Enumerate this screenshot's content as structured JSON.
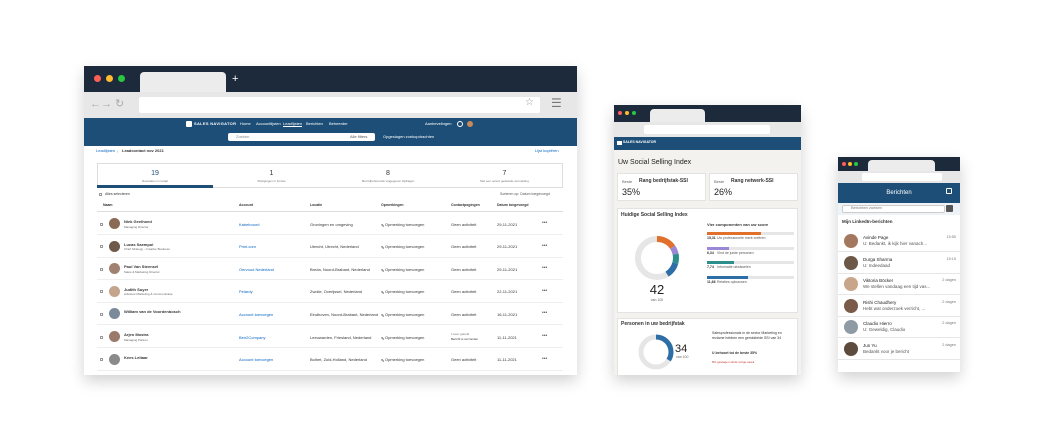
{
  "desktop": {
    "nav": {
      "logo": "SALES NAVIGATOR",
      "links": [
        "Home",
        "Accountlijsten",
        "Leadlijsten",
        "Berichten",
        "Beheerder"
      ],
      "search": "Zoeken",
      "filters": "Alle filters",
      "saved": "Opgeslagen zoekopdrachten",
      "recommendations": "Aanbevelingen"
    },
    "breadcrumb": {
      "parent": "Leadlijsten",
      "current": "Leadcontact nov 2021",
      "action": "Lijst kopiëren"
    },
    "stats": [
      {
        "value": "19",
        "label": "Resultaten in totaal"
      },
      {
        "value": "1",
        "label": "Wijzigingen in functie"
      },
      {
        "value": "8",
        "label": "Met bijbehorende vrijgegeven bijdragen"
      },
      {
        "value": "7",
        "label": "Met een recent gedeelde vermelding"
      }
    ],
    "toolbar": {
      "select_all": "Alles selecteren",
      "sort": "Sorteren op: Datum toegevoegd"
    },
    "table": {
      "headers": [
        "Naam",
        "Account",
        "Locatie",
        "Opmerkingen",
        "Contactpogingen",
        "Datum toegevoegd"
      ],
      "rows": [
        {
          "name": "Niek Geelhoed",
          "title": "Managing Director",
          "account": "Kabelnoord",
          "location": "Groningen en omgeving",
          "note": "Opmerking toevoegen",
          "contact": "Geen activiteit",
          "date": "29-11-2021"
        },
        {
          "name": "Lucas Saempol",
          "title": "Chief Strategy - Creative Business",
          "account": "Print.com",
          "location": "Utrecht, Utrecht, Nederland",
          "note": "Opmerking toevoegen",
          "contact": "Geen activiteit",
          "date": "29-11-2021"
        },
        {
          "name": "Paul Van Steensel",
          "title": "Sales & Marketing Director",
          "account": "Oervoud Nederland",
          "location": "Breda, Noord-Brabant, Nederland",
          "note": "Opmerking toevoegen",
          "contact": "Geen activiteit",
          "date": "29-11-2021"
        },
        {
          "name": "Judith Suyer",
          "title": "Adviseur Marketing & Communicatie",
          "account": "Pelardy",
          "location": "Zwolle, Overijssel, Nederland",
          "note": "Opmerking toevoegen",
          "contact": "Geen activiteit",
          "date": "22-11-2021"
        },
        {
          "name": "William van de Voordenbosch",
          "title": "",
          "account": "Account toevoegen",
          "location": "Eindhoven, Noord-Brabant, Nederland",
          "note": "Opmerking toevoegen",
          "contact": "Geen activiteit",
          "date": "16-11-2021"
        },
        {
          "name": "Arjen Mostra",
          "title": "Managing Partner",
          "account": "Ben2Company",
          "location": "Leeuwarden, Friesland, Nederland",
          "note": "Opmerking toevoegen",
          "contact": "1 keer gebeld",
          "contact_detail": "Bericht is verzonden",
          "date": "11-11-2021"
        },
        {
          "name": "Kees Leitaar",
          "title": "",
          "account": "Account toevoegen",
          "location": "Bolhet, Zuid-Holland, Nederland",
          "note": "Opmerking toevoegen",
          "contact": "Geen activiteit",
          "date": "11-11-2021"
        }
      ]
    }
  },
  "tablet": {
    "nav": "SALES NAVIGATOR",
    "title": "Uw Social Selling Index",
    "ranks": [
      {
        "prefix": "Beste",
        "value": "35%",
        "label": "Rang bedrijfstak-SSI"
      },
      {
        "prefix": "Beste",
        "value": "26%",
        "label": "Rang netwerk-SSI"
      }
    ],
    "current": {
      "heading": "Huidige Social Selling Index",
      "score": 42,
      "out_of": "van 100",
      "components_heading": "Vier componenten van uw score",
      "components": {
        "values": [
          15.31,
          6.34,
          7.74,
          11.66
        ],
        "value_labels": [
          "15,31",
          "6,34",
          "7,74",
          "11,66"
        ],
        "labels": [
          "Uw professionele merk creëren",
          "Vind de juiste personen",
          "Informatie uitwisselen",
          "Relaties opbouwen"
        ],
        "colors": [
          "#e0702c",
          "#9a88d6",
          "#2b8f8e",
          "#2e6ea6"
        ]
      }
    },
    "industry": {
      "heading": "Personen in uw bedrijfstak",
      "score": 34,
      "out_of": "van 100",
      "description": "Salesprofessionals in de sector Marketing en reclame hebben een gemiddelde SSI van 34",
      "rank": "U behoort tot de beste 35%",
      "change": "8% gestegen sinds vorige week"
    }
  },
  "mobile": {
    "header": "Berichten",
    "search": "Berichten zoeken",
    "section": "Mijn LinkedIn-berichten",
    "messages": [
      {
        "name": "Avinde Page",
        "text": "U: Bedankt, ik kijk hier vanach...",
        "time": "15:55"
      },
      {
        "name": "Durga Sharma",
        "text": "U: Indeedaad",
        "time": "15:15"
      },
      {
        "name": "Viktoria Böcker",
        "text": "We stellen vandaag een tijd vas...",
        "time": "2 dagen"
      },
      {
        "name": "Rishi Chaudhery",
        "text": "Hebt wat onderzoek verricht, ...",
        "time": "2 dagen"
      },
      {
        "name": "Claudio Hierro",
        "text": "U: Geweldig, Claudio",
        "time": "2 dagen"
      },
      {
        "name": "Jun Yu",
        "text": "Bedankt voor je bericht",
        "time": "2 dagen"
      }
    ]
  }
}
